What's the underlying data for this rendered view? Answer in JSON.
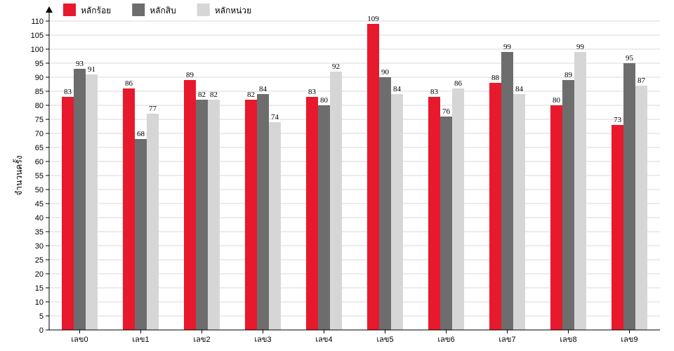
{
  "chart_data": {
    "type": "bar",
    "ylabel": "จำนวนครั้ง",
    "xlabel": "",
    "ylim": [
      0,
      110
    ],
    "ytick_step": 5,
    "grid": true,
    "legend_position": "top-left",
    "categories": [
      "เลข0",
      "เลข1",
      "เลข2",
      "เลข3",
      "เลข4",
      "เลข5",
      "เลข6",
      "เลข7",
      "เลข8",
      "เลข9"
    ],
    "series": [
      {
        "name": "หลักร้อย",
        "color": "#e8192c",
        "values": [
          83,
          86,
          89,
          82,
          83,
          109,
          83,
          88,
          80,
          73
        ]
      },
      {
        "name": "หลักสิบ",
        "color": "#6d6d6d",
        "values": [
          93,
          68,
          82,
          84,
          80,
          90,
          76,
          99,
          89,
          95
        ]
      },
      {
        "name": "หลักหน่วย",
        "color": "#d6d6d6",
        "values": [
          91,
          77,
          82,
          74,
          92,
          84,
          86,
          84,
          99,
          87
        ]
      }
    ]
  }
}
